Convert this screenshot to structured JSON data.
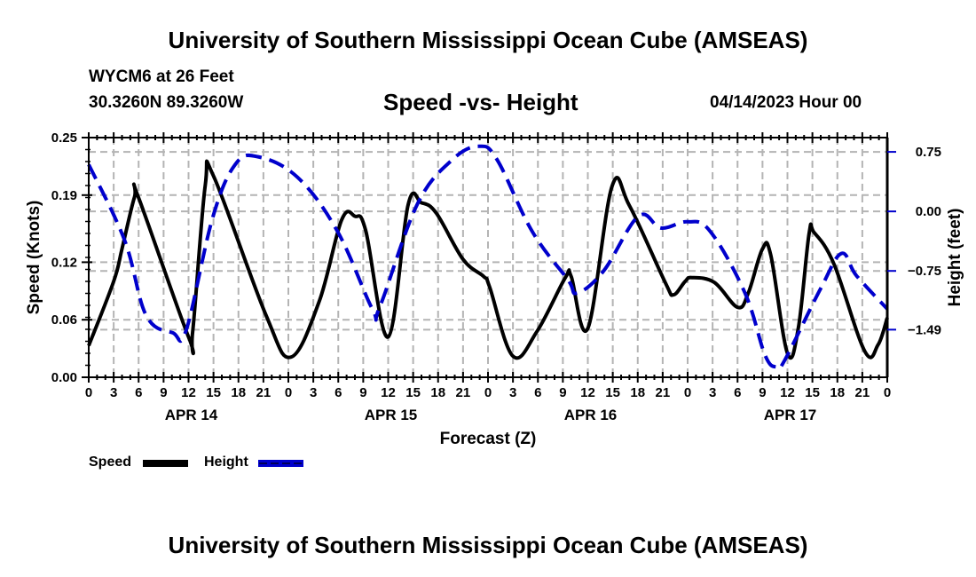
{
  "header": {
    "main_title": "University of Southern Mississippi Ocean Cube (AMSEAS)",
    "station": "WYCM6 at 26 Feet",
    "coords": "30.3260N  89.3260W",
    "subtitle": "Speed -vs- Height",
    "datetime": "04/14/2023 Hour 00",
    "bottom_title": "University of Southern Mississippi Ocean Cube (AMSEAS)"
  },
  "colors": {
    "speed": "#000000",
    "height": "#0000cc",
    "grid": "#b4b4b4"
  },
  "chart_data": {
    "type": "line",
    "title": "Speed -vs- Height",
    "xlabel": "Forecast (Z)",
    "ylabel": "Speed (Knots)",
    "y2label": "Height (feet)",
    "xlim": [
      0,
      96
    ],
    "ylim": [
      0,
      0.25
    ],
    "y2lim": [
      -2.09,
      0.93
    ],
    "x_tick_labels": [
      "0",
      "3",
      "6",
      "9",
      "12",
      "15",
      "18",
      "21",
      "0",
      "3",
      "6",
      "9",
      "12",
      "15",
      "18",
      "21",
      "0",
      "3",
      "6",
      "9",
      "12",
      "15",
      "18",
      "21",
      "0",
      "3",
      "6",
      "9",
      "12",
      "15",
      "18",
      "21",
      "0"
    ],
    "day_labels": [
      {
        "label": "APR 14",
        "hour": 12
      },
      {
        "label": "APR 15",
        "hour": 36
      },
      {
        "label": "APR 16",
        "hour": 60
      },
      {
        "label": "APR 17",
        "hour": 84
      }
    ],
    "y_ticks": [
      0.0,
      0.06,
      0.12,
      0.19,
      0.25
    ],
    "y_tick_labels": [
      "0.00",
      "0.06",
      "0.12",
      "0.19",
      "0.25"
    ],
    "y2_ticks": [
      0.75,
      0.0,
      -0.75,
      -1.49
    ],
    "y2_tick_labels": [
      "0.75",
      "0.00",
      "−0.75",
      "−1.49"
    ],
    "grid": true,
    "legend": {
      "placement": "bottom-left",
      "entries": [
        {
          "name": "Speed",
          "style": "solid"
        },
        {
          "name": "Height",
          "style": "dashed"
        }
      ]
    },
    "series": [
      {
        "name": "Speed",
        "axis": "left",
        "x": [
          0,
          3,
          4,
          5.5,
          6,
          12,
          12.5,
          14,
          15,
          21.3,
          24.3,
          27.7,
          30.4,
          32,
          33.3,
          36,
          38.4,
          40,
          41.8,
          45,
          47.5,
          48.2,
          51,
          53.9,
          57.3,
          58,
          60,
          62.9,
          65,
          69.3,
          70.3,
          71.7,
          72.5,
          75.2,
          78,
          79.3,
          81,
          82,
          84,
          85.3,
          86.6,
          87.2,
          89.6,
          93.3,
          94.9,
          96
        ],
        "values": [
          0.033,
          0.1,
          0.134,
          0.188,
          0.187,
          0.042,
          0.048,
          0.2,
          0.21,
          0.065,
          0.021,
          0.079,
          0.164,
          0.168,
          0.153,
          0.042,
          0.18,
          0.182,
          0.171,
          0.123,
          0.105,
          0.094,
          0.022,
          0.048,
          0.104,
          0.105,
          0.051,
          0.199,
          0.179,
          0.099,
          0.086,
          0.1,
          0.104,
          0.099,
          0.073,
          0.088,
          0.134,
          0.127,
          0.025,
          0.051,
          0.15,
          0.151,
          0.118,
          0.027,
          0.034,
          0.062
        ]
      },
      {
        "name": "Height",
        "axis": "right",
        "x": [
          0,
          4.3,
          6.9,
          10.1,
          11.7,
          14.9,
          17.6,
          20.3,
          25.1,
          29.9,
          34.1,
          35,
          39.5,
          43.7,
          46.9,
          49.1,
          53.3,
          57.6,
          58.7,
          61.9,
          66.1,
          68.8,
          72,
          74.7,
          78.9,
          81.3,
          82.7,
          83.7,
          88,
          90.5,
          92.3,
          96
        ],
        "values": [
          0.59,
          -0.36,
          -1.31,
          -1.53,
          -1.5,
          -0.08,
          0.59,
          0.69,
          0.43,
          -0.25,
          -1.23,
          -1.2,
          0.09,
          0.65,
          0.82,
          0.65,
          -0.25,
          -0.86,
          -1.03,
          -0.75,
          -0.06,
          -0.21,
          -0.13,
          -0.25,
          -1.03,
          -1.81,
          -1.96,
          -1.87,
          -0.97,
          -0.53,
          -0.81,
          -1.23
        ]
      }
    ]
  }
}
